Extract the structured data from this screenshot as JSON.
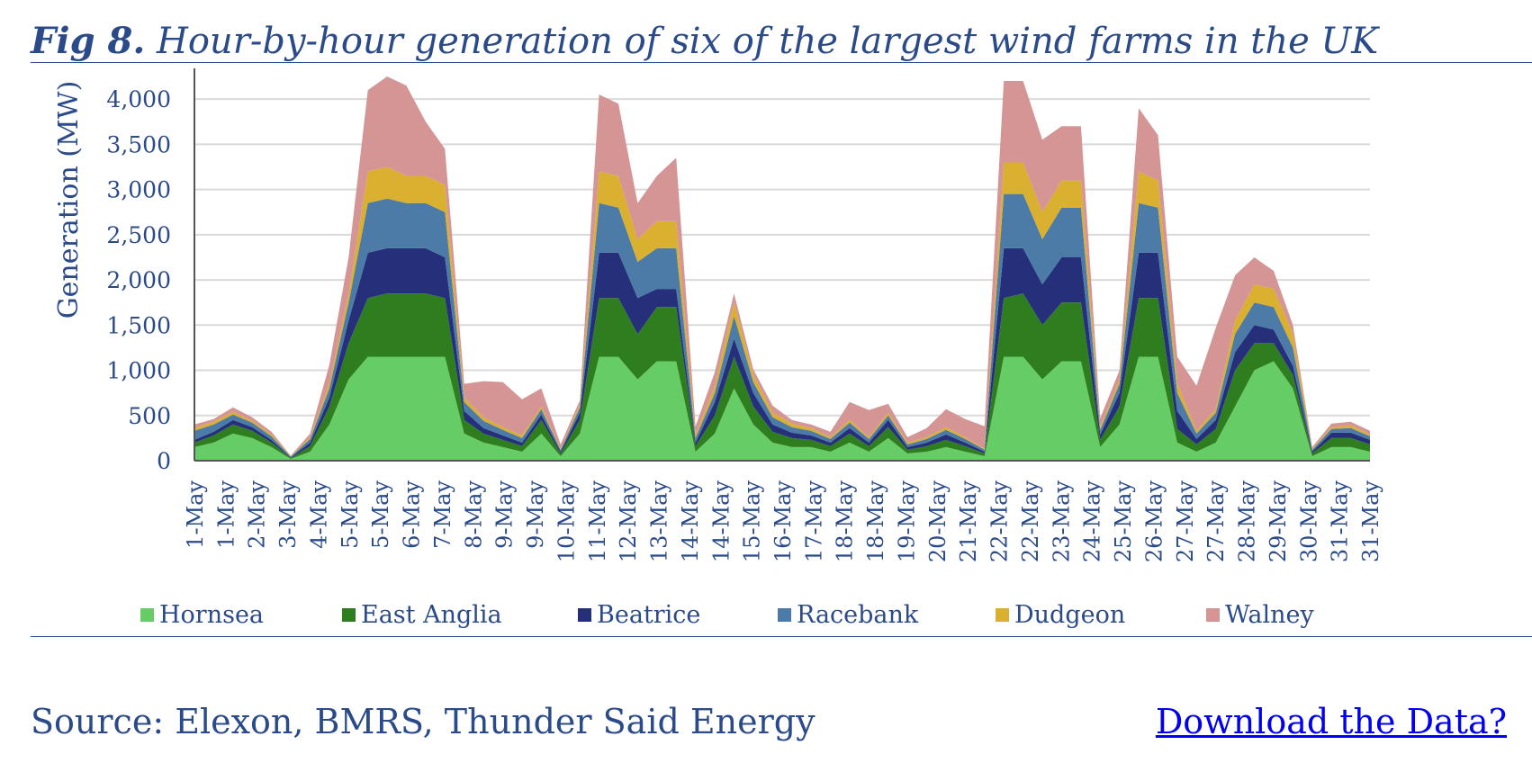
{
  "header": {
    "fig_label": "Fig 8.",
    "title": "Hour-by-hour generation of six of the largest wind farms in the UK"
  },
  "footer": {
    "source": "Source: Elexon, BMRS, Thunder Said Energy",
    "download_link": "Download the Data?"
  },
  "chart_data": {
    "type": "area",
    "stacked": true,
    "ylabel": "Generation (MW)",
    "xlabel": "",
    "ylim": [
      0,
      4300
    ],
    "yticks": [
      0,
      500,
      1000,
      1500,
      2000,
      2500,
      3000,
      3500,
      4000
    ],
    "ytick_labels": [
      "0",
      "500",
      "1,000",
      "1,500",
      "2,000",
      "2,500",
      "3,000",
      "3,500",
      "4,000"
    ],
    "grid": true,
    "legend_position": "bottom",
    "x_tick_labels": [
      "1-May",
      "1-May",
      "2-May",
      "3-May",
      "4-May",
      "5-May",
      "5-May",
      "6-May",
      "7-May",
      "8-May",
      "9-May",
      "9-May",
      "10-May",
      "11-May",
      "12-May",
      "13-May",
      "14-May",
      "14-May",
      "15-May",
      "16-May",
      "17-May",
      "18-May",
      "18-May",
      "19-May",
      "20-May",
      "21-May",
      "22-May",
      "22-May",
      "23-May",
      "24-May",
      "25-May",
      "26-May",
      "27-May",
      "27-May",
      "28-May",
      "29-May",
      "30-May",
      "31-May",
      "31-May"
    ],
    "x_day": [
      1.0,
      1.5,
      2.0,
      2.5,
      3.0,
      3.5,
      4.0,
      4.5,
      5.0,
      5.5,
      6.0,
      6.5,
      7.0,
      7.5,
      8.0,
      8.5,
      9.0,
      9.5,
      10.0,
      10.5,
      11.0,
      11.5,
      12.0,
      12.5,
      13.0,
      13.5,
      14.0,
      14.5,
      15.0,
      15.5,
      16.0,
      16.5,
      17.0,
      17.5,
      18.0,
      18.5,
      19.0,
      19.5,
      20.0,
      20.5,
      21.0,
      21.5,
      22.0,
      22.5,
      23.0,
      23.5,
      24.0,
      24.5,
      25.0,
      25.5,
      26.0,
      26.5,
      27.0,
      27.5,
      28.0,
      28.5,
      29.0,
      29.5,
      30.0,
      30.5,
      31.0,
      31.5
    ],
    "series": [
      {
        "name": "Hornsea",
        "color": "#66cc66",
        "values": [
          150,
          200,
          300,
          250,
          150,
          20,
          100,
          400,
          900,
          1150,
          1150,
          1150,
          1150,
          1150,
          300,
          200,
          150,
          100,
          300,
          50,
          300,
          1150,
          1150,
          900,
          1100,
          1100,
          100,
          300,
          800,
          400,
          200,
          150,
          150,
          100,
          200,
          100,
          250,
          80,
          100,
          150,
          100,
          50,
          1150,
          1150,
          900,
          1100,
          1100,
          150,
          400,
          1150,
          1150,
          200,
          100,
          200,
          600,
          1000,
          1100,
          800,
          50,
          150,
          150,
          100
        ]
      },
      {
        "name": "East Anglia",
        "color": "#2e7d1e",
        "values": [
          50,
          80,
          100,
          80,
          50,
          10,
          60,
          200,
          400,
          650,
          700,
          700,
          700,
          650,
          150,
          100,
          80,
          60,
          150,
          30,
          150,
          650,
          650,
          500,
          600,
          600,
          60,
          200,
          350,
          200,
          120,
          100,
          80,
          60,
          100,
          60,
          120,
          40,
          60,
          80,
          60,
          30,
          650,
          700,
          600,
          650,
          650,
          80,
          200,
          650,
          650,
          150,
          80,
          150,
          400,
          300,
          200,
          150,
          30,
          100,
          100,
          80
        ]
      },
      {
        "name": "Beatrice",
        "color": "#26307a",
        "values": [
          30,
          40,
          50,
          40,
          30,
          5,
          40,
          100,
          250,
          500,
          500,
          500,
          500,
          450,
          100,
          60,
          50,
          40,
          60,
          20,
          80,
          500,
          500,
          400,
          200,
          200,
          40,
          150,
          200,
          150,
          80,
          60,
          50,
          40,
          60,
          40,
          80,
          30,
          40,
          60,
          40,
          20,
          550,
          500,
          450,
          500,
          500,
          60,
          150,
          500,
          500,
          200,
          60,
          100,
          200,
          200,
          150,
          100,
          20,
          60,
          60,
          50
        ]
      },
      {
        "name": "Racebank",
        "color": "#4b7ba6",
        "values": [
          100,
          80,
          60,
          50,
          40,
          10,
          40,
          100,
          200,
          550,
          550,
          500,
          500,
          500,
          100,
          80,
          60,
          50,
          60,
          20,
          60,
          550,
          500,
          400,
          450,
          450,
          50,
          100,
          250,
          120,
          80,
          60,
          50,
          40,
          60,
          40,
          50,
          30,
          40,
          50,
          40,
          20,
          600,
          600,
          500,
          550,
          550,
          50,
          100,
          550,
          500,
          200,
          60,
          80,
          200,
          250,
          250,
          200,
          20,
          40,
          50,
          40
        ]
      },
      {
        "name": "Dudgeon",
        "color": "#d9b030",
        "values": [
          30,
          30,
          30,
          20,
          20,
          5,
          20,
          60,
          100,
          350,
          350,
          300,
          300,
          300,
          50,
          40,
          30,
          30,
          30,
          10,
          30,
          350,
          350,
          250,
          300,
          300,
          30,
          80,
          150,
          80,
          50,
          40,
          30,
          20,
          30,
          20,
          30,
          20,
          20,
          30,
          20,
          10,
          350,
          350,
          300,
          300,
          300,
          30,
          50,
          350,
          300,
          100,
          30,
          40,
          150,
          200,
          200,
          150,
          10,
          20,
          30,
          20
        ]
      },
      {
        "name": "Walney",
        "color": "#d59595",
        "values": [
          40,
          30,
          50,
          40,
          30,
          5,
          40,
          200,
          400,
          900,
          1000,
          1000,
          600,
          400,
          150,
          400,
          500,
          400,
          200,
          50,
          50,
          850,
          800,
          400,
          500,
          700,
          100,
          150,
          100,
          60,
          80,
          40,
          40,
          60,
          200,
          300,
          100,
          60,
          100,
          200,
          200,
          250,
          900,
          900,
          800,
          600,
          600,
          100,
          100,
          700,
          500,
          300,
          500,
          900,
          500,
          300,
          200,
          100,
          20,
          40,
          40,
          40
        ]
      }
    ]
  }
}
